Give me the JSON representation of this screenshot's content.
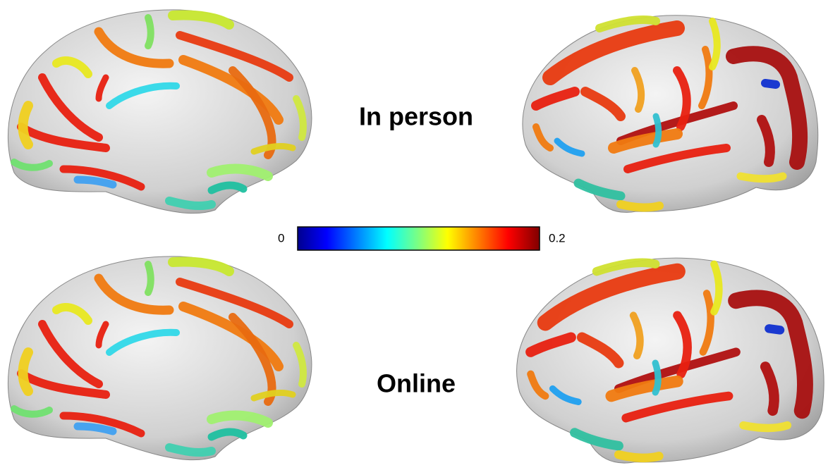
{
  "panels": [
    {
      "label": "In person"
    },
    {
      "label": "Online"
    }
  ],
  "colorbar": {
    "lim": [
      0,
      0.2
    ],
    "ticks": [
      0,
      0.2
    ],
    "colormap": "jet"
  }
}
